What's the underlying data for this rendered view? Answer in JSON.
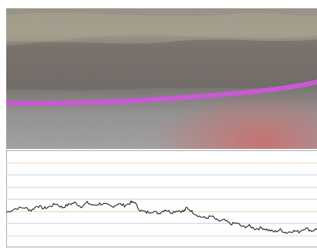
{
  "figure": {
    "photo": {
      "subject": "core-sample-photo",
      "marker_line_color": "#c85ad2",
      "stain_color": "#d25a5a"
    },
    "profile": {
      "line_color": "#222222",
      "grid_color": "#7a7a7a",
      "band_colors": [
        "#f0d8d8",
        "#d8d8f0",
        "#f0d8d8",
        "#d8d8f0",
        "#f0d8d8",
        "#d8d8f0",
        "#f0d8d8"
      ],
      "y_range": [
        0,
        1
      ],
      "x_range": [
        0,
        1
      ],
      "series": [
        [
          0.0,
          0.36
        ],
        [
          0.03,
          0.4
        ],
        [
          0.06,
          0.41
        ],
        [
          0.08,
          0.38
        ],
        [
          0.1,
          0.43
        ],
        [
          0.12,
          0.4
        ],
        [
          0.14,
          0.42
        ],
        [
          0.16,
          0.45
        ],
        [
          0.18,
          0.41
        ],
        [
          0.2,
          0.44
        ],
        [
          0.22,
          0.46
        ],
        [
          0.24,
          0.42
        ],
        [
          0.26,
          0.46
        ],
        [
          0.28,
          0.43
        ],
        [
          0.3,
          0.45
        ],
        [
          0.32,
          0.44
        ],
        [
          0.34,
          0.42
        ],
        [
          0.36,
          0.45
        ],
        [
          0.38,
          0.43
        ],
        [
          0.4,
          0.46
        ],
        [
          0.41,
          0.47
        ],
        [
          0.43,
          0.38
        ],
        [
          0.45,
          0.36
        ],
        [
          0.47,
          0.37
        ],
        [
          0.49,
          0.35
        ],
        [
          0.51,
          0.39
        ],
        [
          0.53,
          0.36
        ],
        [
          0.55,
          0.38
        ],
        [
          0.57,
          0.37
        ],
        [
          0.58,
          0.41
        ],
        [
          0.6,
          0.36
        ],
        [
          0.62,
          0.32
        ],
        [
          0.64,
          0.3
        ],
        [
          0.66,
          0.32
        ],
        [
          0.68,
          0.27
        ],
        [
          0.7,
          0.28
        ],
        [
          0.72,
          0.24
        ],
        [
          0.74,
          0.25
        ],
        [
          0.76,
          0.21
        ],
        [
          0.78,
          0.22
        ],
        [
          0.8,
          0.19
        ],
        [
          0.82,
          0.2
        ],
        [
          0.84,
          0.18
        ],
        [
          0.86,
          0.16
        ],
        [
          0.88,
          0.18
        ],
        [
          0.9,
          0.15
        ],
        [
          0.92,
          0.17
        ],
        [
          0.94,
          0.16
        ],
        [
          0.96,
          0.2
        ],
        [
          0.98,
          0.17
        ],
        [
          1.0,
          0.19
        ]
      ]
    }
  }
}
